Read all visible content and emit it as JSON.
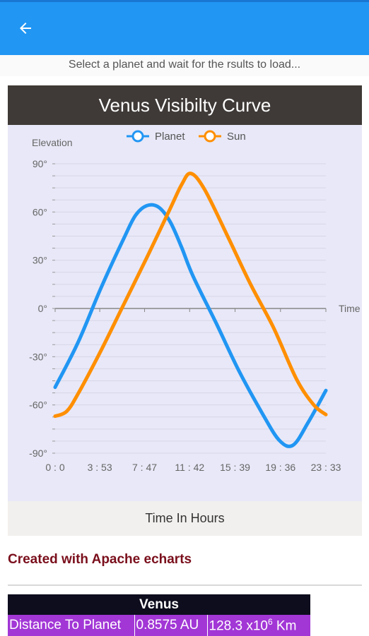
{
  "appbar": {
    "back_icon": "arrow-left-icon",
    "color": "#2196f3"
  },
  "instruction": "Select a planet and wait for the rsults to load...",
  "chart_header": "Venus Visibilty Curve",
  "chart_data": {
    "type": "line",
    "title": "Venus Visibilty Curve",
    "xlabel": "Time In Hours",
    "ylabel": "Elevation",
    "x_axis_end_label": "Time",
    "x_ticks": [
      "0 : 0",
      "3 : 53",
      "7 : 47",
      "11 : 42",
      "15 : 39",
      "19 : 36",
      "23 : 33"
    ],
    "x_tick_hours": [
      0,
      3.88,
      7.78,
      11.7,
      15.65,
      19.6,
      23.55
    ],
    "y_ticks": [
      "90°",
      "60°",
      "30°",
      "0°",
      "-30°",
      "-60°",
      "-90°"
    ],
    "y_tick_values": [
      90,
      60,
      30,
      0,
      -30,
      -60,
      -90
    ],
    "xlim": [
      0,
      23.55
    ],
    "ylim": [
      -90,
      90
    ],
    "legend": {
      "position": "top-center",
      "items": [
        "Planet",
        "Sun"
      ]
    },
    "grid": true,
    "series": [
      {
        "name": "Planet",
        "color": "#2196f3",
        "points": [
          [
            0,
            -49
          ],
          [
            2,
            -21
          ],
          [
            4,
            13
          ],
          [
            6,
            44
          ],
          [
            7,
            58
          ],
          [
            8,
            64
          ],
          [
            9,
            63
          ],
          [
            10,
            54
          ],
          [
            11,
            38
          ],
          [
            12,
            20
          ],
          [
            14,
            -9
          ],
          [
            16,
            -39
          ],
          [
            18,
            -65
          ],
          [
            19.5,
            -82
          ],
          [
            20.7,
            -85
          ],
          [
            22,
            -71
          ],
          [
            23.55,
            -51
          ]
        ]
      },
      {
        "name": "Sun",
        "color": "#ff8f00",
        "points": [
          [
            0,
            -67
          ],
          [
            1,
            -64
          ],
          [
            2,
            -53
          ],
          [
            4,
            -26
          ],
          [
            6,
            3
          ],
          [
            8,
            32
          ],
          [
            10,
            62
          ],
          [
            11,
            77
          ],
          [
            11.8,
            84
          ],
          [
            13,
            74
          ],
          [
            15,
            45
          ],
          [
            17,
            15
          ],
          [
            19,
            -12
          ],
          [
            21,
            -44
          ],
          [
            22.5,
            -60
          ],
          [
            23.55,
            -66
          ]
        ]
      }
    ]
  },
  "x_caption": "Time In Hours",
  "credit": "Created with Apache echarts",
  "info_table": {
    "header": "Venus",
    "row": {
      "label": "Distance To Planet",
      "au": "0.8575 AU",
      "km_base": "128.3 x10",
      "km_exp": "6",
      "km_unit": " Km"
    }
  }
}
